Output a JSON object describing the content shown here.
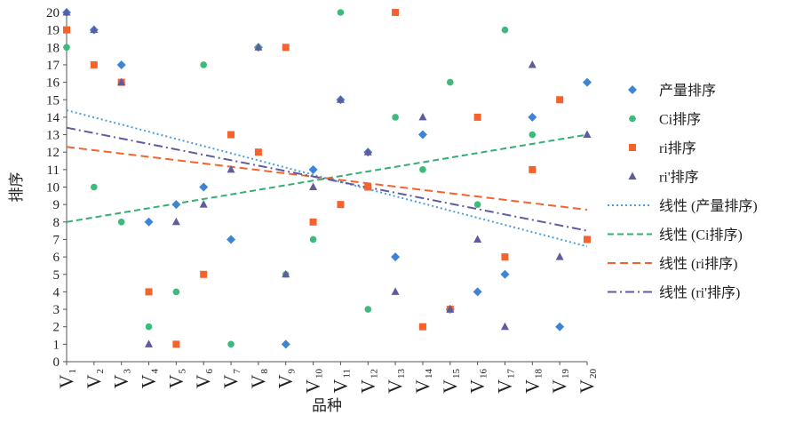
{
  "chart_data": {
    "type": "scatter",
    "title": "",
    "xlabel": "品种",
    "ylabel": "排序",
    "ylim": [
      0,
      20
    ],
    "yticks": [
      0,
      1,
      2,
      3,
      4,
      5,
      6,
      7,
      8,
      9,
      10,
      11,
      12,
      13,
      14,
      15,
      16,
      17,
      18,
      19,
      20
    ],
    "categories": [
      "1",
      "2",
      "3",
      "4",
      "5",
      "6",
      "7",
      "8",
      "9",
      "10",
      "11",
      "12",
      "13",
      "14",
      "15",
      "16",
      "17",
      "18",
      "19",
      "20"
    ],
    "category_prefix": "V",
    "grid": false,
    "legend_position": "right",
    "series": [
      {
        "name": "产量排序",
        "marker": "diamond",
        "color": "#3d85d4",
        "values": [
          20,
          19,
          17,
          8,
          9,
          10,
          7,
          18,
          1,
          11,
          15,
          12,
          6,
          13,
          3,
          4,
          5,
          14,
          2,
          16
        ]
      },
      {
        "name": "Ci排序",
        "marker": "circle",
        "color": "#3dba7c",
        "values": [
          18,
          10,
          8,
          2,
          4,
          17,
          1,
          18,
          5,
          7,
          20,
          3,
          14,
          11,
          16,
          9,
          19,
          13,
          15,
          null
        ]
      },
      {
        "name": "ri排序",
        "marker": "square",
        "color": "#f4622e",
        "values": [
          19,
          17,
          16,
          4,
          1,
          5,
          13,
          12,
          18,
          8,
          9,
          10,
          20,
          2,
          3,
          14,
          6,
          11,
          15,
          7
        ]
      },
      {
        "name": "ri'排序",
        "marker": "triangle",
        "color": "#5e5b9e",
        "values": [
          20,
          19,
          16,
          1,
          8,
          9,
          11,
          18,
          5,
          10,
          15,
          12,
          4,
          14,
          3,
          7,
          2,
          17,
          6,
          13
        ]
      }
    ],
    "trendlines": [
      {
        "name": "线性 (产量排序)",
        "color": "#4a9ee0",
        "dash": "2,3",
        "start": 14.4,
        "end": 6.6
      },
      {
        "name": "线性 (Ci排序)",
        "color": "#34ae74",
        "dash": "7,4",
        "start": 8.0,
        "end": 13.0
      },
      {
        "name": "线性 (ri排序)",
        "color": "#f4622e",
        "dash": "9,5",
        "start": 12.3,
        "end": 8.7
      },
      {
        "name": "线性 (ri'排序)",
        "color": "#5e5b9e",
        "dash": "10,4,2,4",
        "start": 13.4,
        "end": 7.5
      }
    ]
  }
}
